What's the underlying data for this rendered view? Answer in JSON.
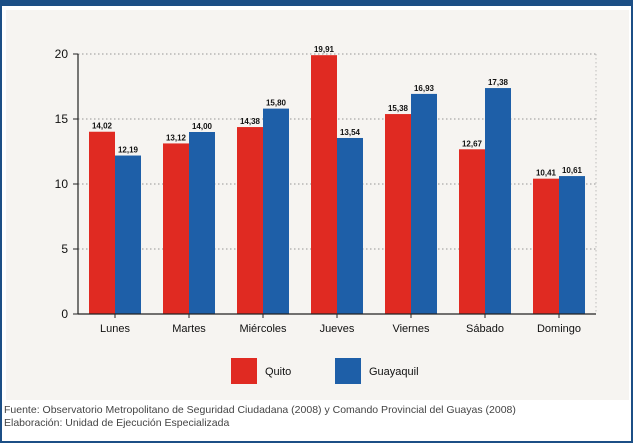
{
  "chart_data": {
    "type": "bar",
    "categories": [
      "Lunes",
      "Martes",
      "Miércoles",
      "Jueves",
      "Viernes",
      "Sábado",
      "Domingo"
    ],
    "series": [
      {
        "name": "Quito",
        "color": "#e02a22",
        "values": [
          14.02,
          13.12,
          14.38,
          19.91,
          15.38,
          12.67,
          10.41
        ],
        "labels": [
          "14,02",
          "13,12",
          "14,38",
          "19,91",
          "15,38",
          "12,67",
          "10,41"
        ]
      },
      {
        "name": "Guayaquil",
        "color": "#1e5fa8",
        "values": [
          12.19,
          14.0,
          15.8,
          13.54,
          16.93,
          17.38,
          10.61
        ],
        "labels": [
          "12,19",
          "14,00",
          "15,80",
          "13,54",
          "16,93",
          "17,38",
          "10,61"
        ]
      }
    ],
    "yticks": [
      "0",
      "5",
      "10",
      "15",
      "20"
    ],
    "ylim": [
      0,
      20
    ],
    "grid": true,
    "legend_position": "bottom"
  },
  "source": {
    "line1": "Fuente: Observatorio Metropolitano de Seguridad Ciudadana (2008) y Comando Provincial del Guayas (2008)",
    "line2": "Elaboración: Unidad de Ejecución Especializada"
  }
}
